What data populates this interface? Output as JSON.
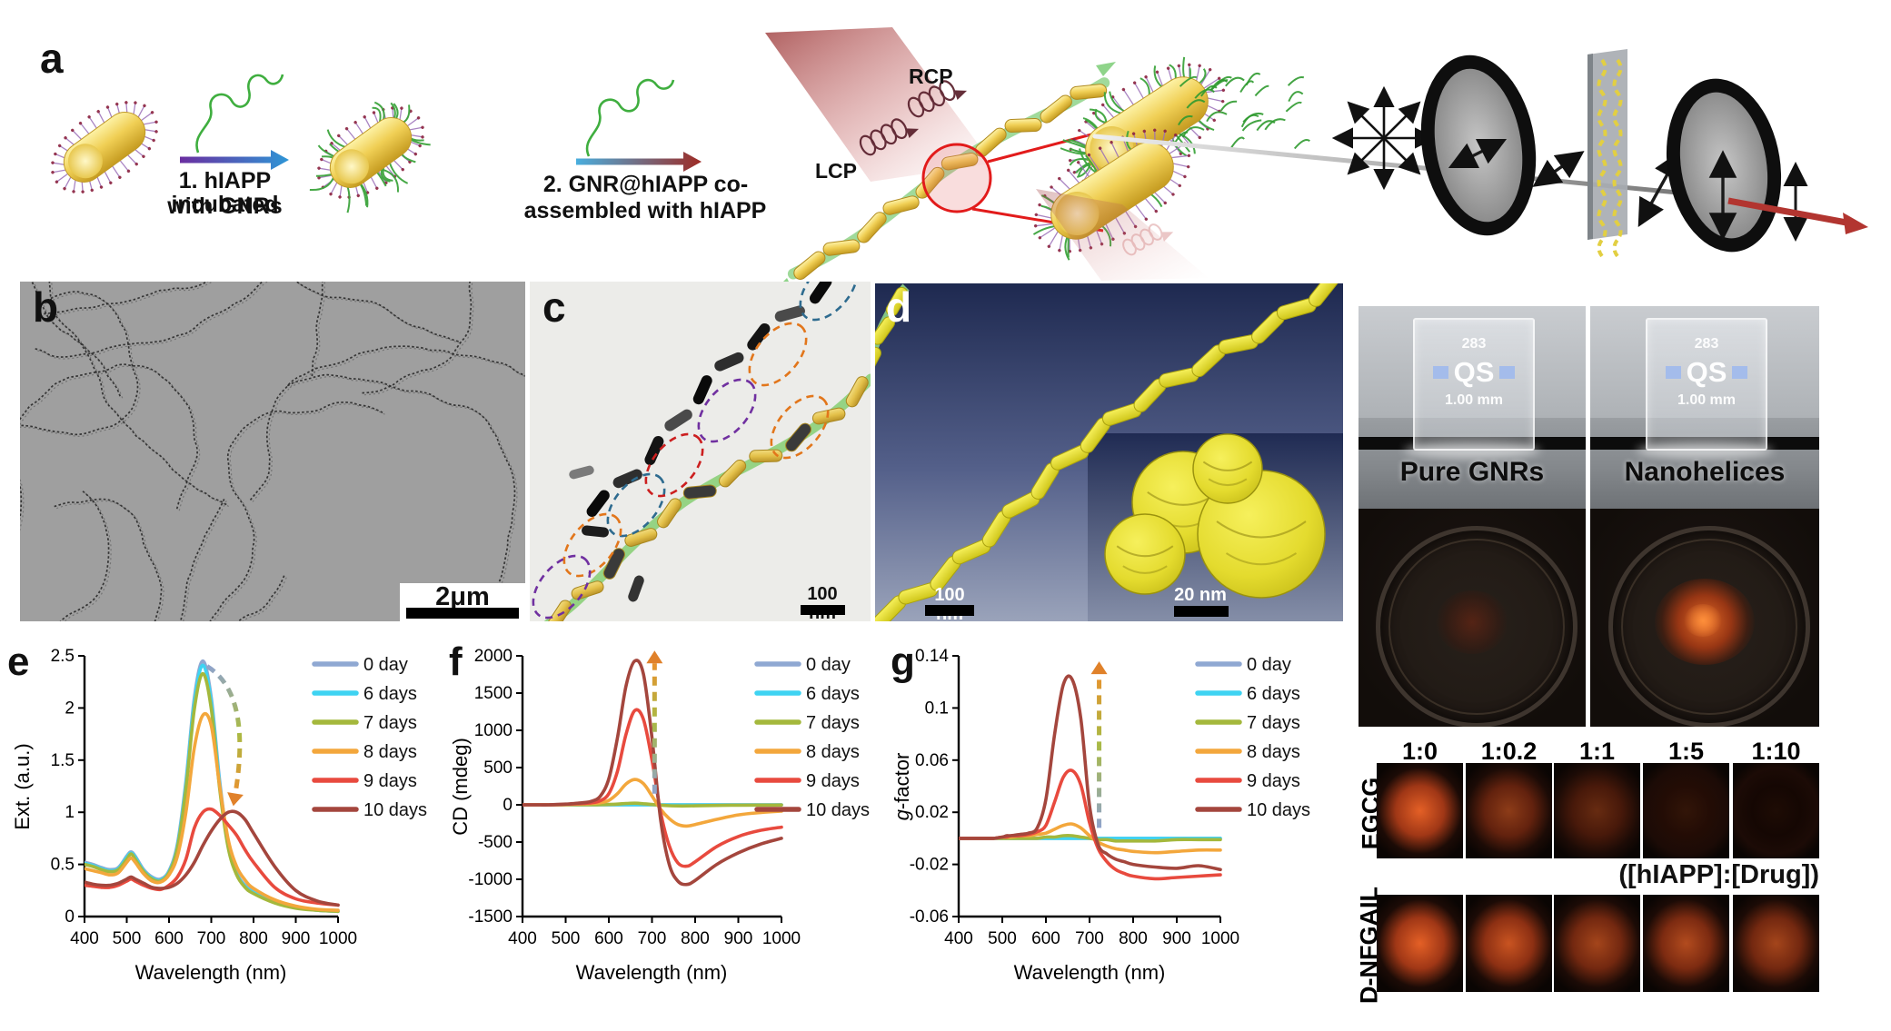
{
  "panel_labels": {
    "a": "a",
    "b": "b",
    "c": "c",
    "d": "d",
    "e": "e",
    "f": "f",
    "g": "g"
  },
  "panel_a": {
    "step1_line1": "1. hIAPP incubated",
    "step1_line2": "with GNRs",
    "step2_line1": "2. GNR@hIAPP co-",
    "step2_line2": "assembled with hIAPP",
    "rcp": "RCP",
    "lcp": "LCP"
  },
  "panel_b": {
    "scale_bar": "2μm"
  },
  "panel_c": {
    "scale_bar": "100 nm"
  },
  "panel_d": {
    "scale_bar_main": "100 nm",
    "scale_bar_inset": "20 nm"
  },
  "photos": {
    "left_label": "Pure GNRs",
    "right_label": "Nanohelices",
    "cuvette_line1": "283",
    "cuvette_line2": "QS",
    "cuvette_line3": "1.00 mm"
  },
  "drug_grid": {
    "col_headers": [
      "1:0",
      "1:0.2",
      "1:1",
      "1:5",
      "1:10"
    ],
    "row_labels": [
      "EGCG",
      "D-NFGAIL"
    ],
    "caption": "([hIAPP]:[Drug])",
    "egcg_intensities": [
      1.0,
      0.62,
      0.45,
      0.22,
      0.13
    ],
    "dnfgail_intensities": [
      1.0,
      0.88,
      0.72,
      0.78,
      0.72
    ],
    "glow_color": "#D75A22"
  },
  "chart_data": [
    {
      "id": "e",
      "type": "line",
      "xlabel": "Wavelength  (nm)",
      "ylabel": "Ext. (a.u.)",
      "xlim": [
        400,
        1000
      ],
      "ylim": [
        0,
        2.5
      ],
      "xticks": [
        400,
        500,
        600,
        700,
        800,
        900,
        1000
      ],
      "yticks": [
        0,
        0.5,
        1,
        1.5,
        2,
        2.5
      ],
      "ytick_labels": [
        "0",
        "0.5",
        "1",
        "1.5",
        "2",
        "2.5"
      ],
      "legend": [
        "0 day",
        "6 days",
        "7 days",
        "8 days",
        "9 days",
        "10 days"
      ],
      "colors": [
        "#8FA8D2",
        "#3ED3F2",
        "#A4B83C",
        "#F3A73C",
        "#E84A3E",
        "#A4463D"
      ],
      "x": [
        400,
        420,
        440,
        460,
        480,
        500,
        510,
        520,
        540,
        560,
        580,
        600,
        620,
        640,
        660,
        680,
        700,
        720,
        740,
        760,
        780,
        800,
        850,
        900,
        950,
        1000
      ],
      "series": [
        {
          "name": "0 day",
          "y": [
            0.52,
            0.5,
            0.47,
            0.45,
            0.47,
            0.58,
            0.62,
            0.58,
            0.45,
            0.38,
            0.36,
            0.44,
            0.7,
            1.3,
            2.1,
            2.45,
            2.1,
            1.3,
            0.7,
            0.42,
            0.3,
            0.24,
            0.14,
            0.09,
            0.06,
            0.05
          ]
        },
        {
          "name": "6 days",
          "y": [
            0.51,
            0.49,
            0.46,
            0.44,
            0.46,
            0.57,
            0.61,
            0.57,
            0.44,
            0.37,
            0.35,
            0.43,
            0.68,
            1.27,
            2.06,
            2.41,
            2.06,
            1.27,
            0.68,
            0.41,
            0.29,
            0.23,
            0.14,
            0.09,
            0.06,
            0.05
          ]
        },
        {
          "name": "7 days",
          "y": [
            0.5,
            0.48,
            0.45,
            0.43,
            0.45,
            0.55,
            0.6,
            0.55,
            0.43,
            0.36,
            0.34,
            0.42,
            0.66,
            1.22,
            1.99,
            2.33,
            1.99,
            1.22,
            0.66,
            0.4,
            0.28,
            0.22,
            0.13,
            0.08,
            0.06,
            0.05
          ]
        },
        {
          "name": "8 days",
          "y": [
            0.46,
            0.44,
            0.42,
            0.4,
            0.42,
            0.52,
            0.56,
            0.52,
            0.41,
            0.34,
            0.33,
            0.4,
            0.58,
            1.0,
            1.62,
            1.93,
            1.83,
            1.25,
            0.74,
            0.48,
            0.35,
            0.27,
            0.16,
            0.1,
            0.07,
            0.06
          ]
        },
        {
          "name": "9 days",
          "y": [
            0.3,
            0.29,
            0.28,
            0.28,
            0.3,
            0.34,
            0.36,
            0.34,
            0.3,
            0.27,
            0.26,
            0.3,
            0.38,
            0.55,
            0.85,
            1.0,
            1.03,
            0.97,
            0.88,
            0.78,
            0.64,
            0.52,
            0.28,
            0.17,
            0.13,
            0.11
          ]
        },
        {
          "name": "10 days",
          "y": [
            0.33,
            0.31,
            0.3,
            0.3,
            0.32,
            0.36,
            0.38,
            0.36,
            0.32,
            0.28,
            0.27,
            0.28,
            0.32,
            0.4,
            0.52,
            0.68,
            0.82,
            0.93,
            1.0,
            1.0,
            0.93,
            0.8,
            0.48,
            0.25,
            0.15,
            0.11
          ]
        }
      ],
      "arrow": {
        "x1": 690,
        "y1": 2.4,
        "x2": 757,
        "y2": 1.18,
        "shape": "curve"
      }
    },
    {
      "id": "f",
      "type": "line",
      "xlabel": "Wavelength  (nm)",
      "ylabel": "CD (mdeg)",
      "xlim": [
        400,
        1000
      ],
      "ylim": [
        -1500,
        2000
      ],
      "xticks": [
        400,
        500,
        600,
        700,
        800,
        900,
        1000
      ],
      "yticks": [
        -1500,
        -1000,
        -500,
        0,
        500,
        1000,
        1500,
        2000
      ],
      "ytick_labels": [
        "-1500",
        "-1000",
        "-500",
        "0",
        "500",
        "1000",
        "1500",
        "2000"
      ],
      "legend": [
        "0 day",
        "6 days",
        "7 days",
        "8 days",
        "9 days",
        "10 days"
      ],
      "colors": [
        "#8FA8D2",
        "#3ED3F2",
        "#A4B83C",
        "#F3A73C",
        "#E84A3E",
        "#A4463D"
      ],
      "x": [
        400,
        420,
        440,
        460,
        480,
        500,
        510,
        520,
        540,
        560,
        580,
        600,
        620,
        640,
        660,
        680,
        700,
        720,
        740,
        760,
        780,
        800,
        850,
        900,
        950,
        1000
      ],
      "series": [
        {
          "name": "0 day",
          "y": [
            0,
            0,
            0,
            0,
            0,
            0,
            0,
            0,
            0,
            0,
            0,
            0,
            0,
            0,
            0,
            0,
            0,
            0,
            0,
            0,
            0,
            0,
            0,
            0,
            0,
            0
          ]
        },
        {
          "name": "6 days",
          "y": [
            0,
            0,
            0,
            0,
            0,
            0,
            0,
            0,
            0,
            0,
            0,
            0,
            0,
            0,
            0,
            0,
            0,
            0,
            0,
            0,
            0,
            0,
            0,
            0,
            0,
            0
          ]
        },
        {
          "name": "7 days",
          "y": [
            0,
            0,
            0,
            0,
            0,
            0,
            0,
            0,
            0,
            0,
            2,
            5,
            10,
            18,
            22,
            15,
            5,
            -5,
            -12,
            -15,
            -15,
            -13,
            -8,
            -5,
            -4,
            -3
          ]
        },
        {
          "name": "8 days",
          "y": [
            0,
            0,
            0,
            0,
            0,
            3,
            5,
            8,
            12,
            18,
            28,
            60,
            150,
            280,
            340,
            285,
            120,
            -60,
            -185,
            -265,
            -285,
            -265,
            -195,
            -135,
            -105,
            -85
          ]
        },
        {
          "name": "9 days",
          "y": [
            0,
            0,
            0,
            0,
            3,
            8,
            10,
            13,
            18,
            28,
            55,
            150,
            450,
            950,
            1265,
            1150,
            600,
            -100,
            -550,
            -780,
            -825,
            -765,
            -560,
            -425,
            -345,
            -300
          ]
        },
        {
          "name": "10 days",
          "y": [
            0,
            0,
            0,
            0,
            5,
            10,
            13,
            18,
            28,
            48,
            115,
            350,
            900,
            1600,
            1930,
            1760,
            900,
            -200,
            -800,
            -1025,
            -1070,
            -1015,
            -800,
            -645,
            -530,
            -450
          ]
        }
      ],
      "arrow": {
        "x1": 706,
        "y1": 150,
        "x2": 706,
        "y2": 1900,
        "shape": "vertical"
      }
    },
    {
      "id": "g",
      "type": "line",
      "xlabel": "Wavelength  (nm)",
      "ylabel": "g-factor",
      "xlim": [
        400,
        1000
      ],
      "ylim": [
        -0.06,
        0.14
      ],
      "xticks": [
        400,
        500,
        600,
        700,
        800,
        900,
        1000
      ],
      "yticks": [
        -0.06,
        -0.02,
        0.02,
        0.06,
        0.1,
        0.14
      ],
      "ytick_labels": [
        "-0.06",
        "-0.02",
        "0.02",
        "0.06",
        "0.1",
        "0.14"
      ],
      "legend": [
        "0 day",
        "6 days",
        "7 days",
        "8 days",
        "9 days",
        "10 days"
      ],
      "colors": [
        "#8FA8D2",
        "#3ED3F2",
        "#A4B83C",
        "#F3A73C",
        "#E84A3E",
        "#A4463D"
      ],
      "x": [
        400,
        420,
        440,
        460,
        480,
        500,
        510,
        520,
        540,
        560,
        580,
        600,
        620,
        640,
        660,
        680,
        700,
        720,
        740,
        760,
        780,
        800,
        850,
        900,
        950,
        1000
      ],
      "series": [
        {
          "name": "0 day",
          "y": [
            0,
            0,
            0,
            0,
            0,
            0,
            0,
            0,
            0,
            0,
            0,
            0,
            0,
            0,
            0,
            0,
            0,
            0,
            0,
            0,
            0,
            0,
            0,
            0,
            0,
            0
          ]
        },
        {
          "name": "6 days",
          "y": [
            0,
            0,
            0,
            0,
            0,
            0,
            0,
            0,
            0,
            0,
            0,
            0,
            0,
            0,
            0,
            0,
            0,
            0,
            0,
            0,
            0,
            0,
            0,
            0,
            0,
            0
          ]
        },
        {
          "name": "7 days",
          "y": [
            0,
            0,
            0,
            0,
            0,
            0,
            0,
            0,
            0,
            0,
            0,
            0.001,
            0.001,
            0.002,
            0.002,
            0.001,
            0,
            -0.001,
            -0.001,
            -0.002,
            -0.002,
            -0.002,
            -0.002,
            -0.001,
            -0.001,
            -0.001
          ]
        },
        {
          "name": "8 days",
          "y": [
            0,
            0,
            0,
            0,
            0,
            0.001,
            0.001,
            0.001,
            0.002,
            0.002,
            0.003,
            0.004,
            0.007,
            0.01,
            0.011,
            0.008,
            0.002,
            -0.003,
            -0.006,
            -0.008,
            -0.009,
            -0.01,
            -0.011,
            -0.01,
            -0.009,
            -0.009
          ]
        },
        {
          "name": "9 days",
          "y": [
            0,
            0,
            0,
            0,
            0,
            0.001,
            0.001,
            0.002,
            0.002,
            0.003,
            0.005,
            0.01,
            0.028,
            0.047,
            0.052,
            0.041,
            0.012,
            -0.008,
            -0.018,
            -0.024,
            -0.027,
            -0.029,
            -0.031,
            -0.03,
            -0.029,
            -0.028
          ]
        },
        {
          "name": "10 days",
          "y": [
            0,
            0,
            0,
            0,
            0,
            0.001,
            0.002,
            0.002,
            0.003,
            0.004,
            0.008,
            0.03,
            0.08,
            0.118,
            0.122,
            0.092,
            0.025,
            -0.005,
            -0.012,
            -0.016,
            -0.018,
            -0.02,
            -0.022,
            -0.023,
            -0.021,
            -0.024
          ]
        }
      ],
      "arrow": {
        "x1": 722,
        "y1": 0.008,
        "x2": 722,
        "y2": 0.126,
        "shape": "vertical"
      }
    }
  ]
}
